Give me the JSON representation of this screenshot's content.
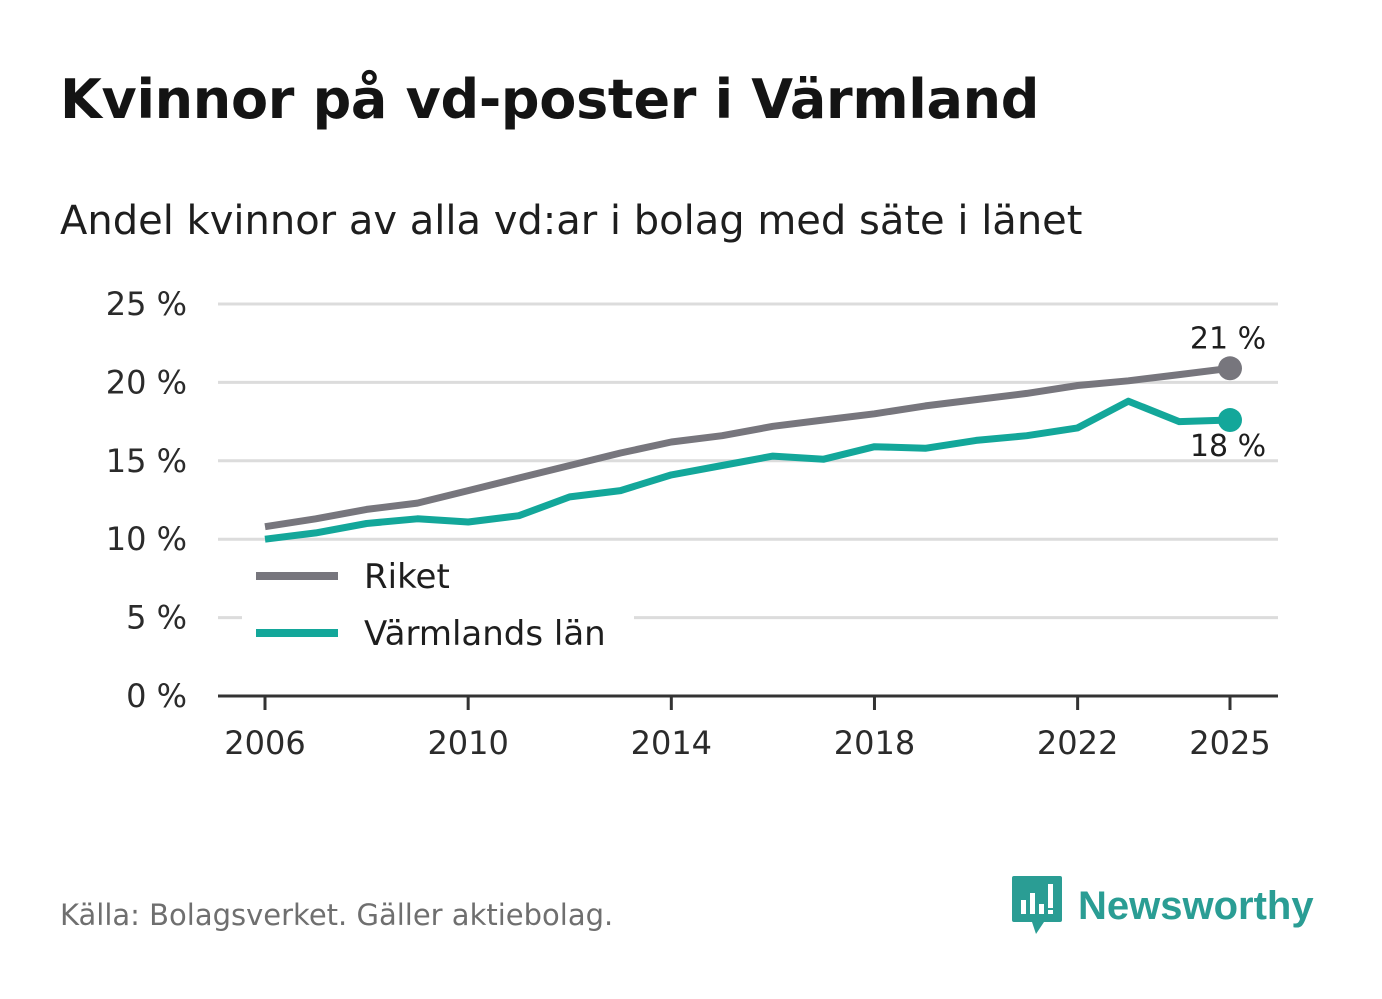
{
  "title": "Kvinnor på vd-poster i Värmland",
  "subtitle": "Andel kvinnor av alla vd:ar i bolag med säte i länet",
  "source": "Källa: Bolagsverket. Gäller aktiebolag.",
  "brand": {
    "name": "Newsworthy",
    "logo_icon": "bar-chart-bubble-icon"
  },
  "colors": {
    "riket": "#77767d",
    "varmland": "#13a79a",
    "grid": "#dcdcdc",
    "axis": "#333333",
    "brand": "#2a9d94"
  },
  "chart_data": {
    "type": "line",
    "title": "Kvinnor på vd-poster i Värmland",
    "xlabel": "",
    "ylabel": "",
    "ylim": [
      0,
      25
    ],
    "xlim": [
      2006,
      2025
    ],
    "y_ticks": [
      0,
      5,
      10,
      15,
      20,
      25
    ],
    "y_tick_labels": [
      "0 %",
      "5 %",
      "10 %",
      "15 %",
      "20 %",
      "25 %"
    ],
    "x_ticks": [
      2006,
      2010,
      2014,
      2018,
      2022,
      2025
    ],
    "x_tick_labels": [
      "2006",
      "2010",
      "2014",
      "2018",
      "2022",
      "2025"
    ],
    "grid": true,
    "legend_position": "bottom-left",
    "x": [
      2006,
      2007,
      2008,
      2009,
      2010,
      2011,
      2012,
      2013,
      2014,
      2015,
      2016,
      2017,
      2018,
      2019,
      2020,
      2021,
      2022,
      2023,
      2024,
      2025
    ],
    "series": [
      {
        "name": "Riket",
        "color": "#77767d",
        "values": [
          10.8,
          11.3,
          11.9,
          12.3,
          13.1,
          13.9,
          14.7,
          15.5,
          16.2,
          16.6,
          17.2,
          17.6,
          18.0,
          18.5,
          18.9,
          19.3,
          19.8,
          20.1,
          20.5,
          20.9
        ],
        "end_label": "21 %"
      },
      {
        "name": "Värmlands län",
        "color": "#13a79a",
        "values": [
          10.0,
          10.4,
          11.0,
          11.3,
          11.1,
          11.5,
          12.7,
          13.1,
          14.1,
          14.7,
          15.3,
          15.1,
          15.9,
          15.8,
          16.3,
          16.6,
          17.1,
          18.8,
          17.5,
          17.6
        ],
        "end_label": "18 %"
      }
    ]
  }
}
